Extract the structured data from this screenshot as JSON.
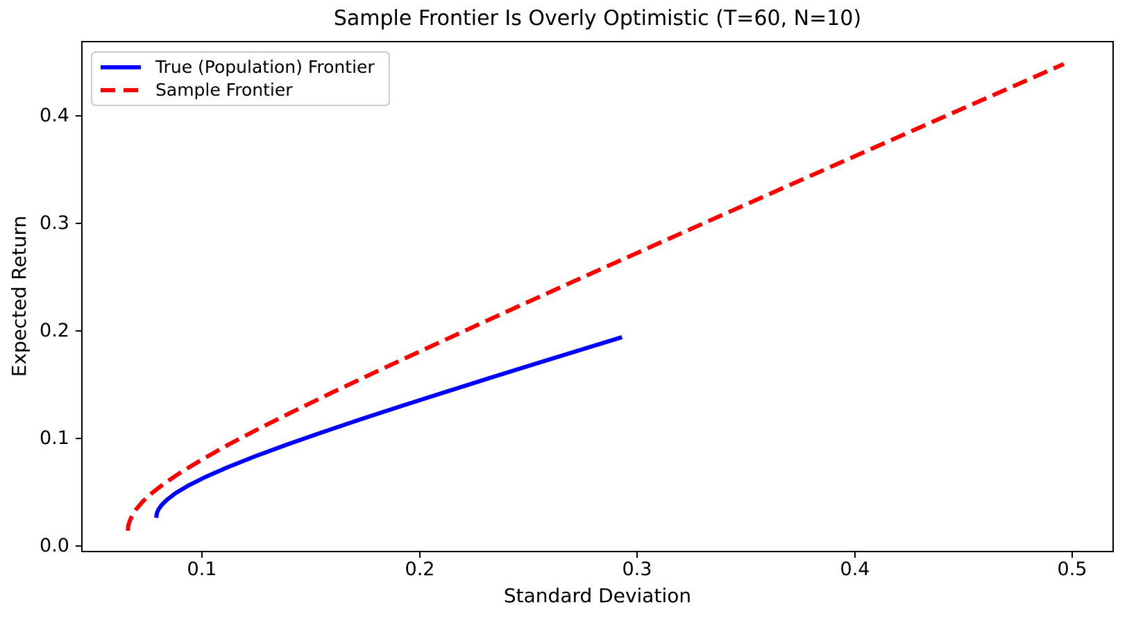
{
  "figure": {
    "background": "#ffffff",
    "text_color": "#000000",
    "spine_color": "#000000",
    "legend_border_color": "#cccccc"
  },
  "chart_data": {
    "type": "line",
    "title": "Sample Frontier Is Overly Optimistic (T=60, N=10)",
    "xlabel": "Standard Deviation",
    "ylabel": "Expected Return",
    "xlim": [
      0.0445,
      0.519
    ],
    "ylim": [
      -0.006,
      0.4695
    ],
    "grid": false,
    "xticks": {
      "values": [
        0.1,
        0.2,
        0.3,
        0.4,
        0.5
      ],
      "labels": [
        "0.1",
        "0.2",
        "0.3",
        "0.4",
        "0.5"
      ]
    },
    "yticks": {
      "values": [
        0.0,
        0.1,
        0.2,
        0.3,
        0.4
      ],
      "labels": [
        "0.0",
        "0.1",
        "0.2",
        "0.3",
        "0.4"
      ]
    },
    "legend": {
      "position": "upper left",
      "entries": [
        "True (Population) Frontier",
        "Sample Frontier"
      ]
    },
    "series": [
      {
        "name": "True (Population) Frontier",
        "color": "#0000ff",
        "style": "solid",
        "points": [
          [
            0.079,
            0.026
          ],
          [
            0.0791,
            0.028
          ],
          [
            0.0794,
            0.031
          ],
          [
            0.0801,
            0.034
          ],
          [
            0.0815,
            0.038
          ],
          [
            0.084,
            0.043
          ],
          [
            0.0879,
            0.049
          ],
          [
            0.0937,
            0.056
          ],
          [
            0.1016,
            0.064
          ],
          [
            0.1117,
            0.073
          ],
          [
            0.1241,
            0.083
          ],
          [
            0.1389,
            0.094
          ],
          [
            0.1559,
            0.106
          ],
          [
            0.1735,
            0.118
          ],
          [
            0.1917,
            0.13
          ],
          [
            0.2118,
            0.143
          ],
          [
            0.2322,
            0.156
          ],
          [
            0.2528,
            0.169
          ],
          [
            0.272,
            0.181
          ],
          [
            0.293,
            0.194
          ]
        ]
      },
      {
        "name": "Sample Frontier",
        "color": "#ff0000",
        "style": "dashed",
        "points": [
          [
            0.066,
            0.014
          ],
          [
            0.066,
            0.016
          ],
          [
            0.0662,
            0.019
          ],
          [
            0.0668,
            0.023
          ],
          [
            0.0679,
            0.028
          ],
          [
            0.0698,
            0.034
          ],
          [
            0.0727,
            0.041
          ],
          [
            0.077,
            0.049
          ],
          [
            0.0827,
            0.058
          ],
          [
            0.0908,
            0.069
          ],
          [
            0.1007,
            0.081
          ],
          [
            0.1121,
            0.094
          ],
          [
            0.1262,
            0.109
          ],
          [
            0.142,
            0.125
          ],
          [
            0.1603,
            0.143
          ],
          [
            0.1802,
            0.162
          ],
          [
            0.2025,
            0.183
          ],
          [
            0.2262,
            0.205
          ],
          [
            0.2523,
            0.229
          ],
          [
            0.2797,
            0.254
          ],
          [
            0.3084,
            0.28
          ],
          [
            0.3395,
            0.308
          ],
          [
            0.3707,
            0.336
          ],
          [
            0.4019,
            0.364
          ],
          [
            0.4332,
            0.392
          ],
          [
            0.4646,
            0.42
          ],
          [
            0.496,
            0.448
          ]
        ]
      }
    ]
  }
}
